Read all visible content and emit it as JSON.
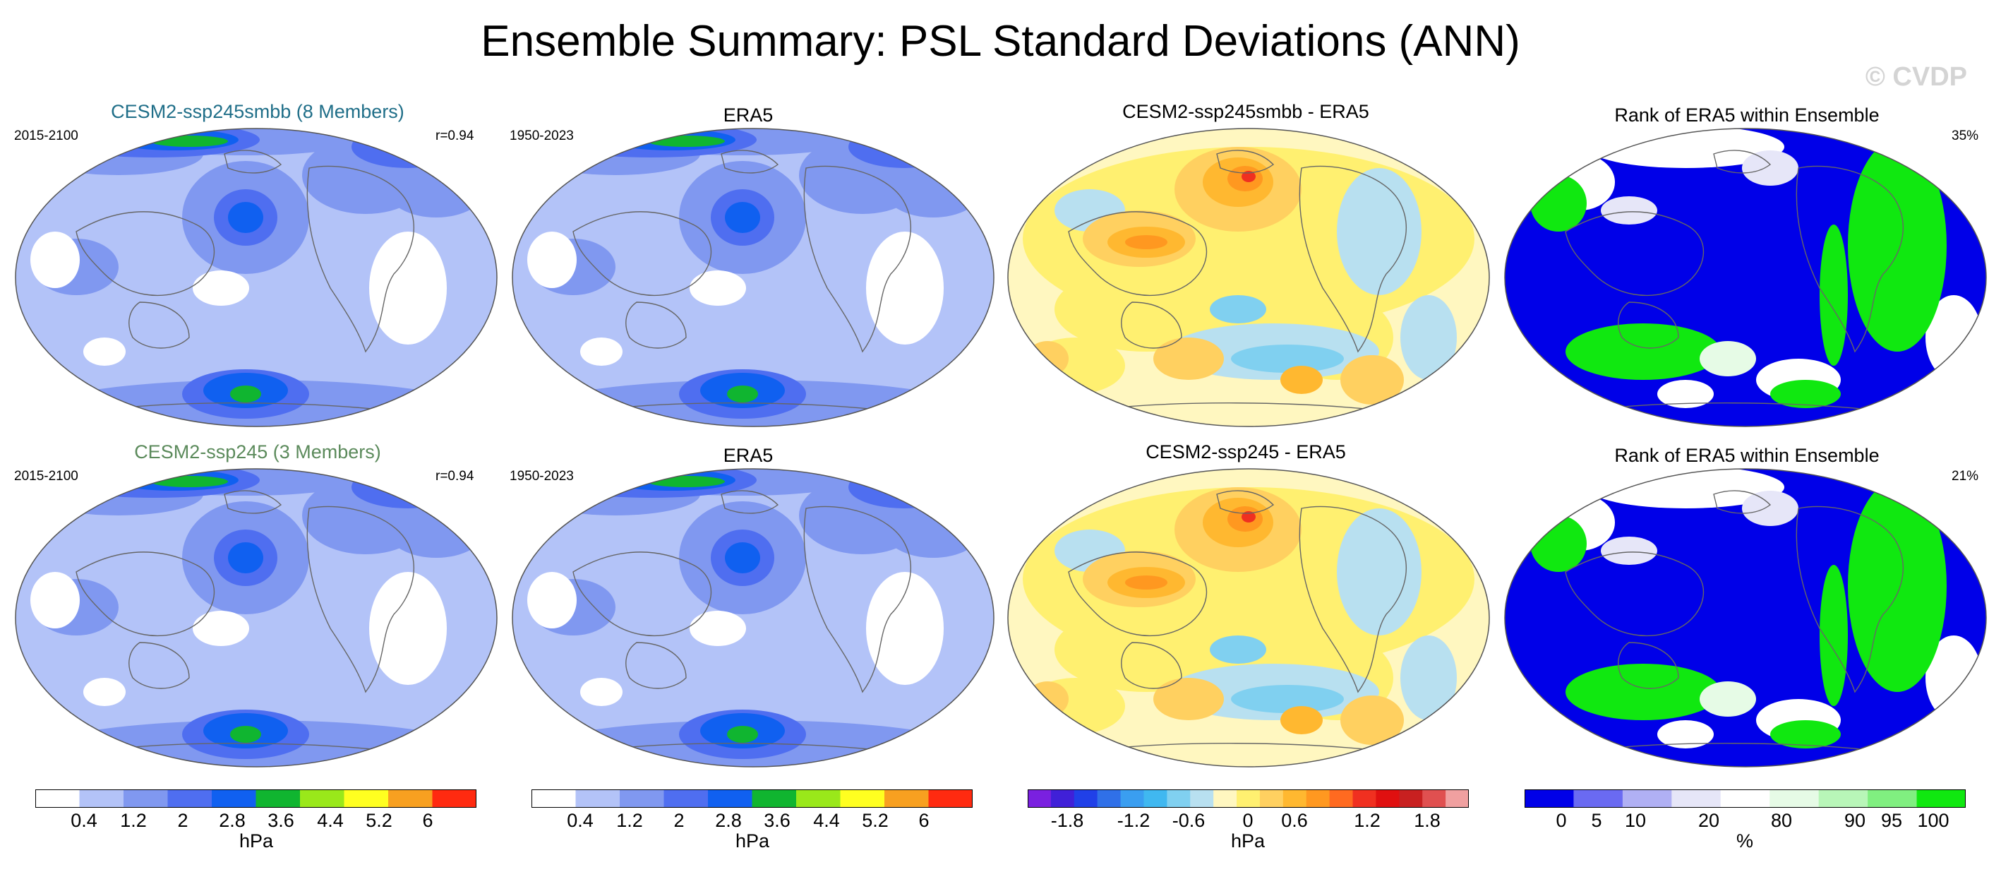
{
  "title": "Ensemble Summary: PSL Standard Deviations (ANN)",
  "watermark": "© CVDP",
  "colors": {
    "std": [
      "#ffffff",
      "#b3c3f8",
      "#8098f0",
      "#4f6ef0",
      "#1060f0",
      "#10b530",
      "#9ae81a",
      "#ffff20",
      "#f8a020",
      "#ff2a10"
    ],
    "diff": [
      "#7a20e0",
      "#4020d8",
      "#2040e8",
      "#3070e8",
      "#3a9ef0",
      "#40b8f0",
      "#80d0f0",
      "#b8e0f0",
      "#fff7c0",
      "#fff070",
      "#ffd060",
      "#ffb830",
      "#ff9820",
      "#ff6a20",
      "#f03020",
      "#e01010",
      "#c82020",
      "#e05050",
      "#f0a0a0"
    ],
    "rank": [
      "#0000e8",
      "#6a6af2",
      "#b0b0f4",
      "#e6e6f8",
      "#ffffff",
      "#e6fbe6",
      "#b8f6b8",
      "#80ef80",
      "#10e810"
    ],
    "ocean": "#b3c3f8",
    "coast": "#666666"
  },
  "rows": [
    {
      "panels": [
        {
          "title": "CESM2-ssp245smbb (8 Members)",
          "title_color": "#1f6e88",
          "left_label": "2015-2100",
          "right_label": "r=0.94",
          "type": "std"
        },
        {
          "title": "ERA5",
          "title_color": "#000000",
          "left_label": "1950-2023",
          "right_label": "",
          "type": "std"
        },
        {
          "title": "CESM2-ssp245smbb - ERA5",
          "title_color": "#000000",
          "left_label": "",
          "right_label": "",
          "type": "diff"
        },
        {
          "title": "Rank of ERA5 within Ensemble",
          "title_color": "#000000",
          "left_label": "",
          "right_label": "35%",
          "type": "rank"
        }
      ]
    },
    {
      "panels": [
        {
          "title": "CESM2-ssp245 (3 Members)",
          "title_color": "#5b8a5b",
          "left_label": "2015-2100",
          "right_label": "r=0.94",
          "type": "std"
        },
        {
          "title": "ERA5",
          "title_color": "#000000",
          "left_label": "1950-2023",
          "right_label": "",
          "type": "std"
        },
        {
          "title": "CESM2-ssp245 - ERA5",
          "title_color": "#000000",
          "left_label": "",
          "right_label": "",
          "type": "diff"
        },
        {
          "title": "Rank of ERA5 within Ensemble",
          "title_color": "#000000",
          "left_label": "",
          "right_label": "21%",
          "type": "rank"
        }
      ]
    }
  ],
  "colorbars": [
    {
      "unit": "hPa",
      "ticks": [
        "0.4",
        "1.2",
        "2",
        "2.8",
        "3.6",
        "4.4",
        "5.2",
        "6"
      ]
    },
    {
      "unit": "hPa",
      "ticks": [
        "0.4",
        "1.2",
        "2",
        "2.8",
        "3.6",
        "4.4",
        "5.2",
        "6"
      ]
    },
    {
      "unit": "hPa",
      "ticks": [
        "-1.8",
        "-1.2",
        "-0.6",
        "0",
        "0.6",
        "1.2",
        "1.8"
      ]
    },
    {
      "unit": "%",
      "ticks": [
        "0",
        "5",
        "10",
        "20",
        "80",
        "90",
        "95",
        "100"
      ]
    }
  ]
}
